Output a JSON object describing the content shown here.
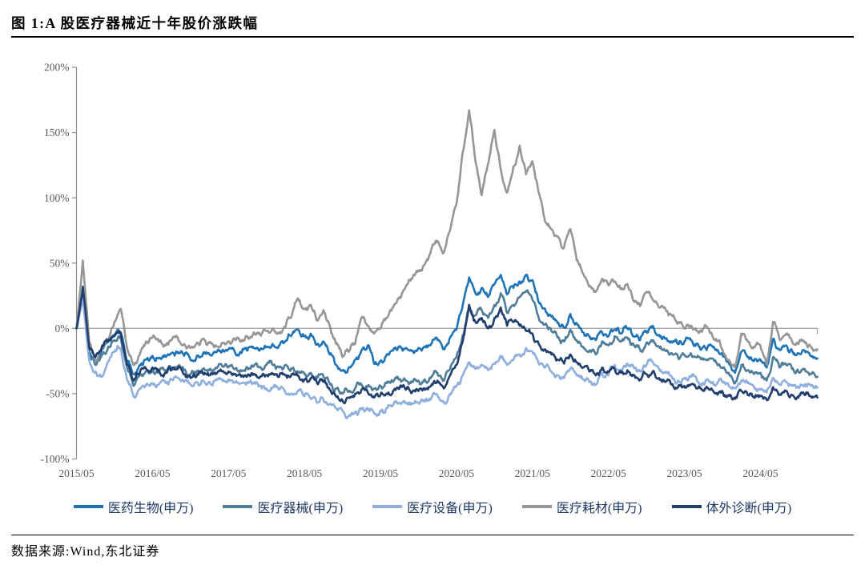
{
  "figure": {
    "title": "图 1:A 股医疗器械近十年股价涨跌幅",
    "source": "数据来源:Wind,东北证券"
  },
  "chart_data": {
    "type": "line",
    "title": "A 股医疗器械近十年股价涨跌幅",
    "x_unit": "months since 2015/05",
    "x_tick_labels": [
      "2015/05",
      "2016/05",
      "2017/05",
      "2018/05",
      "2019/05",
      "2020/05",
      "2021/05",
      "2022/05",
      "2023/05",
      "2024/05"
    ],
    "x_tick_month_index": [
      0,
      12,
      24,
      36,
      48,
      60,
      72,
      84,
      96,
      108
    ],
    "y_ticks": [
      {
        "label": "200%",
        "value": 200
      },
      {
        "label": "150%",
        "value": 150
      },
      {
        "label": "100%",
        "value": 100
      },
      {
        "label": "50%",
        "value": 50
      },
      {
        "label": "0%",
        "value": 0
      },
      {
        "label": "-50%",
        "value": -50
      },
      {
        "label": "-100%",
        "value": -100
      }
    ],
    "ylim": [
      -100,
      200
    ],
    "grid": "zero-line-only",
    "legend_position": "bottom",
    "colors": {
      "axis": "#8c8c8c",
      "zero_line": "#a6a6a6",
      "tick_label": "#595959",
      "legend_text": "#1F3864"
    },
    "series": [
      {
        "name": "医药生物(申万)",
        "color": "#1F74B8",
        "monthly_pct_change": [
          0,
          30,
          -18,
          -25,
          -16,
          -10,
          -5,
          -3,
          -25,
          -35,
          -28,
          -24,
          -21,
          -23,
          -21,
          -19,
          -18,
          -21,
          -24,
          -21,
          -19,
          -20,
          -18,
          -17,
          -16,
          -18,
          -19,
          -17,
          -15,
          -16,
          -14,
          -12,
          -13,
          -10,
          -5,
          -1,
          -6,
          -4,
          -12,
          -10,
          -20,
          -28,
          -32,
          -30,
          -24,
          -17,
          -13,
          -27,
          -25,
          -20,
          -17,
          -14,
          -15,
          -17,
          -15,
          -14,
          -12,
          -9,
          -16,
          -7,
          -1,
          18,
          39,
          27,
          31,
          24,
          34,
          41,
          26,
          31,
          36,
          41,
          37,
          20,
          15,
          9,
          4,
          1,
          11,
          4,
          -3,
          -6,
          -9,
          -3,
          -6,
          -1,
          -4,
          0,
          -6,
          -9,
          -2,
          2,
          -5,
          -8,
          -10,
          -12,
          -10,
          -9,
          -12,
          -14,
          -13,
          -16,
          -20,
          -26,
          -34,
          -18,
          -22,
          -25,
          -24,
          -30,
          -8,
          -16,
          -13,
          -17,
          -19,
          -17,
          -21,
          -23
        ]
      },
      {
        "name": "医疗器械(申万)",
        "color": "#507D99",
        "monthly_pct_change": [
          0,
          26,
          -20,
          -28,
          -20,
          -14,
          -9,
          -7,
          -30,
          -44,
          -36,
          -33,
          -31,
          -33,
          -32,
          -30,
          -29,
          -32,
          -35,
          -33,
          -31,
          -32,
          -30,
          -29,
          -29,
          -31,
          -32,
          -30,
          -29,
          -30,
          -28,
          -28,
          -30,
          -28,
          -31,
          -33,
          -35,
          -34,
          -38,
          -37,
          -42,
          -46,
          -50,
          -48,
          -46,
          -43,
          -44,
          -46,
          -44,
          -42,
          -41,
          -39,
          -40,
          -41,
          -40,
          -39,
          -37,
          -34,
          -40,
          -31,
          -22,
          -5,
          18,
          10,
          14,
          8,
          18,
          27,
          12,
          18,
          24,
          28,
          22,
          8,
          3,
          -2,
          -7,
          -10,
          -1,
          -9,
          -14,
          -17,
          -20,
          -10,
          -13,
          -6,
          -10,
          -7,
          -13,
          -16,
          -11,
          -9,
          -14,
          -17,
          -19,
          -22,
          -20,
          -19,
          -22,
          -24,
          -23,
          -26,
          -30,
          -34,
          -42,
          -28,
          -32,
          -35,
          -34,
          -40,
          -22,
          -30,
          -27,
          -31,
          -33,
          -31,
          -35,
          -37
        ]
      },
      {
        "name": "医疗设备(申万)",
        "color": "#8FB0DE",
        "monthly_pct_change": [
          0,
          22,
          -24,
          -33,
          -37,
          -25,
          -18,
          -15,
          -40,
          -52,
          -46,
          -43,
          -42,
          -43,
          -41,
          -39,
          -38,
          -41,
          -43,
          -41,
          -40,
          -41,
          -40,
          -39,
          -39,
          -41,
          -42,
          -41,
          -42,
          -44,
          -46,
          -45,
          -47,
          -49,
          -50,
          -48,
          -52,
          -54,
          -57,
          -55,
          -58,
          -61,
          -63,
          -67,
          -64,
          -61,
          -62,
          -65,
          -63,
          -61,
          -59,
          -57,
          -57,
          -58,
          -57,
          -56,
          -54,
          -51,
          -56,
          -50,
          -44,
          -36,
          -26,
          -31,
          -28,
          -32,
          -27,
          -21,
          -28,
          -24,
          -20,
          -15,
          -18,
          -27,
          -30,
          -33,
          -36,
          -38,
          -31,
          -36,
          -39,
          -41,
          -43,
          -34,
          -36,
          -28,
          -32,
          -27,
          -30,
          -33,
          -28,
          -26,
          -31,
          -34,
          -37,
          -40,
          -38,
          -37,
          -40,
          -42,
          -41,
          -43,
          -41,
          -44,
          -46,
          -40,
          -42,
          -45,
          -47,
          -49,
          -38,
          -43,
          -41,
          -44,
          -45,
          -43,
          -44,
          -45
        ]
      },
      {
        "name": "医疗耗材(申万)",
        "color": "#969696",
        "monthly_pct_change": [
          0,
          52,
          -10,
          -25,
          -15,
          -8,
          5,
          15,
          -15,
          -28,
          -20,
          -10,
          -7,
          -10,
          -13,
          -9,
          -7,
          -12,
          -15,
          -11,
          -8,
          -11,
          -13,
          -11,
          -10,
          -8,
          -10,
          -6,
          -3,
          -5,
          -2,
          0,
          -3,
          1,
          10,
          23,
          15,
          18,
          6,
          14,
          2,
          -12,
          -22,
          -18,
          -12,
          8,
          2,
          -4,
          0,
          8,
          16,
          24,
          32,
          38,
          44,
          49,
          60,
          67,
          58,
          75,
          95,
          135,
          167,
          128,
          102,
          126,
          152,
          122,
          104,
          124,
          140,
          118,
          128,
          104,
          82,
          76,
          70,
          62,
          76,
          52,
          42,
          32,
          28,
          38,
          33,
          36,
          30,
          34,
          21,
          17,
          28,
          22,
          16,
          15,
          10,
          4,
          0,
          2,
          -2,
          0,
          -3,
          -8,
          -16,
          -24,
          -30,
          -4,
          -10,
          -14,
          -13,
          -28,
          5,
          -8,
          -5,
          -10,
          -12,
          -10,
          -14,
          -16
        ]
      },
      {
        "name": "体外诊断(申万)",
        "color": "#203E6E",
        "monthly_pct_change": [
          0,
          32,
          -15,
          -22,
          -14,
          -10,
          -6,
          -4,
          -28,
          -40,
          -34,
          -31,
          -30,
          -32,
          -34,
          -32,
          -31,
          -35,
          -38,
          -36,
          -35,
          -36,
          -35,
          -33,
          -33,
          -35,
          -37,
          -36,
          -35,
          -37,
          -36,
          -35,
          -37,
          -36,
          -35,
          -36,
          -39,
          -38,
          -42,
          -41,
          -47,
          -52,
          -55,
          -53,
          -50,
          -47,
          -49,
          -53,
          -51,
          -50,
          -48,
          -46,
          -47,
          -49,
          -48,
          -47,
          -44,
          -40,
          -46,
          -36,
          -28,
          -10,
          18,
          5,
          8,
          0,
          8,
          16,
          2,
          5,
          2,
          -2,
          -4,
          -12,
          -16,
          -20,
          -24,
          -27,
          -20,
          -26,
          -30,
          -33,
          -36,
          -30,
          -33,
          -31,
          -34,
          -32,
          -36,
          -39,
          -35,
          -33,
          -38,
          -41,
          -43,
          -45,
          -44,
          -43,
          -46,
          -48,
          -47,
          -50,
          -48,
          -51,
          -54,
          -48,
          -51,
          -53,
          -52,
          -55,
          -45,
          -51,
          -48,
          -51,
          -53,
          -51,
          -52,
          -53
        ]
      }
    ]
  }
}
